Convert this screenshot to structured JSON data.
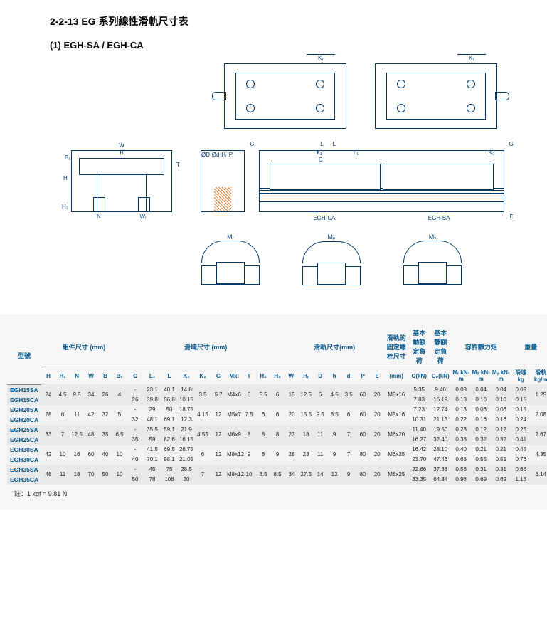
{
  "title": "2-2-13 EG 系列線性滑軌尺寸表",
  "subtitle": "(1) EGH-SA / EGH-CA",
  "diagram_labels": {
    "K1": "K₁",
    "W": "W",
    "B": "B",
    "B1": "B₁",
    "H": "H",
    "H1": "H₁",
    "N": "N",
    "Wr": "Wᵣ",
    "G": "G",
    "L": "L",
    "L1": "L₁",
    "C": "C",
    "Mxl4": "4-Mxl",
    "Mxl2": "2-Mxl",
    "K2": "K₂",
    "OD": "ØD",
    "Od": "Ød",
    "Hr": "Hᵣ",
    "P": "P",
    "E": "E",
    "T": "T",
    "caption_ca": "EGH-CA",
    "caption_sa": "EGH-SA",
    "Mr": "Mᵣ",
    "Mp": "Mₚ",
    "My": "Mᵧ"
  },
  "header": {
    "model": "型號",
    "grp1": "組件尺寸 (mm)",
    "grp2": "滑塊尺寸 (mm)",
    "grp3": "滑軌尺寸(mm)",
    "grp4": "滑軌的固定螺栓尺寸",
    "grp5": "基本動額定負荷",
    "grp6": "基本靜額定負荷",
    "grp7": "容許靜力矩",
    "grp8": "重量",
    "sub": [
      "H",
      "H₁",
      "N",
      "W",
      "B",
      "B₁",
      "C",
      "L₁",
      "L",
      "K₁",
      "K₂",
      "G",
      "Mxl",
      "T",
      "H₂",
      "H₃",
      "Wᵣ",
      "Hᵣ",
      "D",
      "h",
      "d",
      "P",
      "E",
      "(mm)",
      "C(kN)",
      "C₀(kN)",
      "Mᵣ kN-m",
      "Mₚ kN-m",
      "Mᵧ kN-m",
      "滑塊 kg",
      "滑軌 kg/m"
    ]
  },
  "colors": {
    "line": "#003a6b",
    "accent": "#0a5a8c",
    "row_odd": "#e9e9e9",
    "row_even": "#f2f2f2",
    "table_bg": "#f6f6f6",
    "hatch": "#e08030"
  },
  "rows": [
    {
      "m": "EGH15SA",
      "shared": {
        "H": "24",
        "H1": "4.5",
        "N": "9.5",
        "W": "34",
        "B": "26",
        "B1": "4"
      },
      "C": "-",
      "L1": "23.1",
      "L": "40.1",
      "K1": "14.8",
      "tail": {
        "K2": "3.5",
        "G": "5.7",
        "Mxl": "M4x6",
        "T": "6",
        "H2": "5.5",
        "H3": "6",
        "Wr": "15",
        "Hr": "12.5",
        "D": "6",
        "h": "4.5",
        "d": "3.5",
        "P": "60",
        "E": "20",
        "bolt": "M3x16"
      },
      "CkN": "5.35",
      "C0": "9.40",
      "Mr": "0.08",
      "Mp": "0.04",
      "My": "0.04",
      "kg": "0.09",
      "kgm": "1.25"
    },
    {
      "m": "EGH15CA",
      "C": "26",
      "L1": "39.8",
      "L": "56.8",
      "K1": "10.15",
      "CkN": "7.83",
      "C0": "16.19",
      "Mr": "0.13",
      "Mp": "0.10",
      "My": "0.10",
      "kg": "0.15"
    },
    {
      "m": "EGH20SA",
      "shared": {
        "H": "28",
        "H1": "6",
        "N": "11",
        "W": "42",
        "B": "32",
        "B1": "5"
      },
      "C": "-",
      "L1": "29",
      "L": "50",
      "K1": "18.75",
      "tail": {
        "K2": "4.15",
        "G": "12",
        "Mxl": "M5x7",
        "T": "7.5",
        "H2": "6",
        "H3": "6",
        "Wr": "20",
        "Hr": "15.5",
        "D": "9.5",
        "h": "8.5",
        "d": "6",
        "P": "60",
        "E": "20",
        "bolt": "M5x16"
      },
      "CkN": "7.23",
      "C0": "12.74",
      "Mr": "0.13",
      "Mp": "0.06",
      "My": "0.06",
      "kg": "0.15",
      "kgm": "2.08"
    },
    {
      "m": "EGH20CA",
      "C": "32",
      "L1": "48.1",
      "L": "69.1",
      "K1": "12.3",
      "CkN": "10.31",
      "C0": "21.13",
      "Mr": "0.22",
      "Mp": "0.16",
      "My": "0.16",
      "kg": "0.24"
    },
    {
      "m": "EGH25SA",
      "shared": {
        "H": "33",
        "H1": "7",
        "N": "12.5",
        "W": "48",
        "B": "35",
        "B1": "6.5"
      },
      "C": "-",
      "L1": "35.5",
      "L": "59.1",
      "K1": "21.9",
      "tail": {
        "K2": "4.55",
        "G": "12",
        "Mxl": "M6x9",
        "T": "8",
        "H2": "8",
        "H3": "8",
        "Wr": "23",
        "Hr": "18",
        "D": "11",
        "h": "9",
        "d": "7",
        "P": "60",
        "E": "20",
        "bolt": "M6x20"
      },
      "CkN": "11.40",
      "C0": "19.50",
      "Mr": "0.23",
      "Mp": "0.12",
      "My": "0.12",
      "kg": "0.25",
      "kgm": "2.67"
    },
    {
      "m": "EGH25CA",
      "C": "35",
      "L1": "59",
      "L": "82.6",
      "K1": "16.15",
      "CkN": "16.27",
      "C0": "32.40",
      "Mr": "0.38",
      "Mp": "0.32",
      "My": "0.32",
      "kg": "0.41"
    },
    {
      "m": "EGH30SA",
      "shared": {
        "H": "42",
        "H1": "10",
        "N": "16",
        "W": "60",
        "B": "40",
        "B1": "10"
      },
      "C": "-",
      "L1": "41.5",
      "L": "69.5",
      "K1": "26.75",
      "tail": {
        "K2": "6",
        "G": "12",
        "Mxl": "M8x12",
        "T": "9",
        "H2": "8",
        "H3": "9",
        "Wr": "28",
        "Hr": "23",
        "D": "11",
        "h": "9",
        "d": "7",
        "P": "80",
        "E": "20",
        "bolt": "M6x25"
      },
      "CkN": "16.42",
      "C0": "28.10",
      "Mr": "0.40",
      "Mp": "0.21",
      "My": "0.21",
      "kg": "0.45",
      "kgm": "4.35"
    },
    {
      "m": "EGH30CA",
      "C": "40",
      "L1": "70.1",
      "L": "98.1",
      "K1": "21.05",
      "CkN": "23.70",
      "C0": "47.46",
      "Mr": "0.68",
      "Mp": "0.55",
      "My": "0.55",
      "kg": "0.76"
    },
    {
      "m": "EGH35SA",
      "shared": {
        "H": "48",
        "H1": "11",
        "N": "18",
        "W": "70",
        "B": "50",
        "B1": "10"
      },
      "C": "-",
      "L1": "45",
      "L": "75",
      "K1": "28.5",
      "tail": {
        "K2": "7",
        "G": "12",
        "Mxl": "M8x12",
        "T": "10",
        "H2": "8.5",
        "H3": "8.5",
        "Wr": "34",
        "Hr": "27.5",
        "D": "14",
        "h": "12",
        "d": "9",
        "P": "80",
        "E": "20",
        "bolt": "M8x25"
      },
      "CkN": "22.66",
      "C0": "37.38",
      "Mr": "0.56",
      "Mp": "0.31",
      "My": "0.31",
      "kg": "0.66",
      "kgm": "6.14"
    },
    {
      "m": "EGH35CA",
      "C": "50",
      "L1": "78",
      "L": "108",
      "K1": "20",
      "CkN": "33.35",
      "C0": "64.84",
      "Mr": "0.98",
      "Mp": "0.69",
      "My": "0.69",
      "kg": "1.13"
    }
  ],
  "footnote": "註：1 kgf = 9.81 N"
}
